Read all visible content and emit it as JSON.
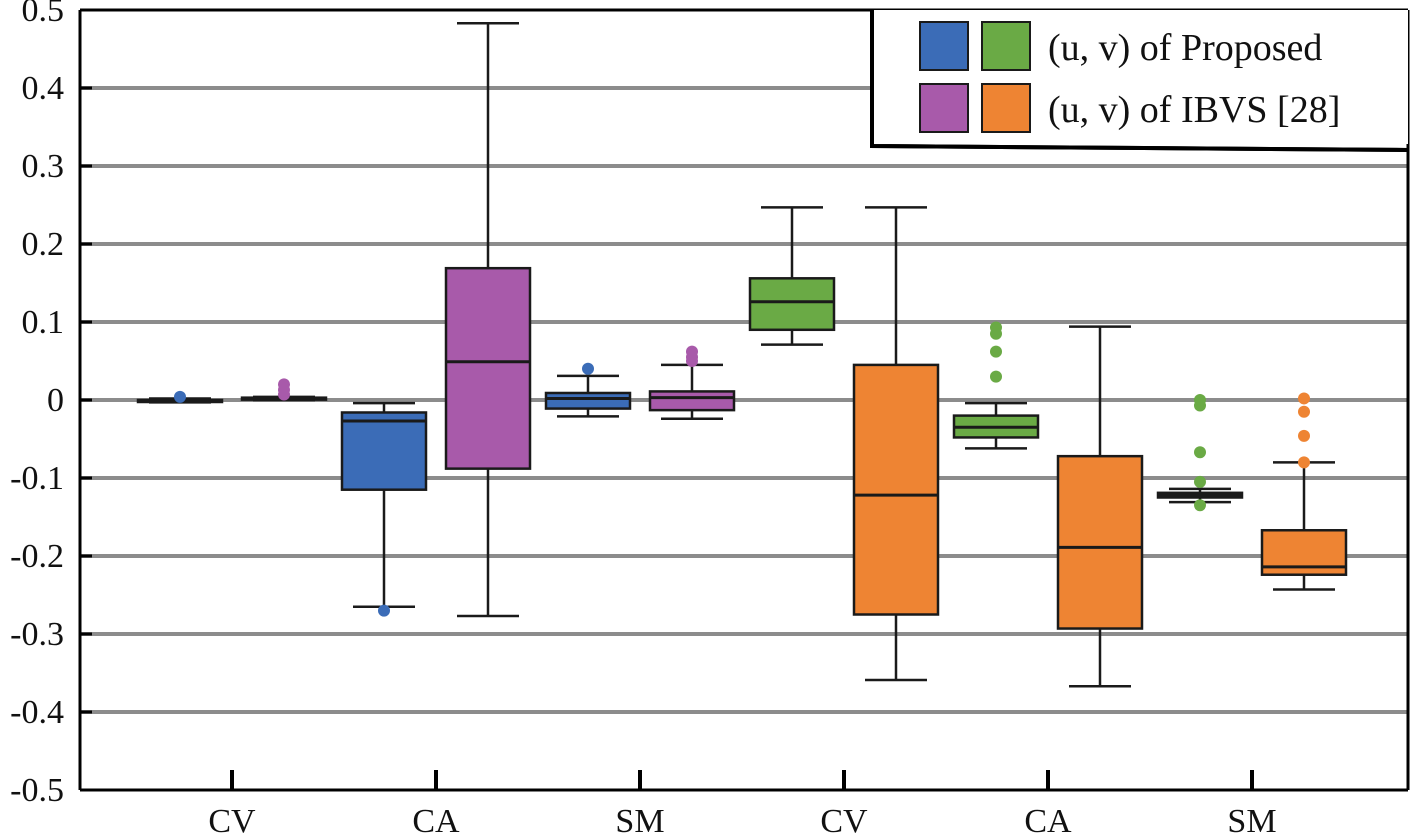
{
  "chart_data": {
    "type": "box",
    "ylim": [
      -0.5,
      0.5
    ],
    "yticks": [
      "-0.5",
      "-0.4",
      "-0.3",
      "-0.2",
      "-0.1",
      "0",
      "0.1",
      "0.2",
      "0.3",
      "0.4",
      "0.5"
    ],
    "ytick_values": [
      -0.5,
      -0.4,
      -0.3,
      -0.2,
      -0.1,
      0,
      0.1,
      0.2,
      0.3,
      0.4,
      0.5
    ],
    "categories": [
      "CV",
      "CA",
      "SM",
      "CV",
      "CA",
      "SM"
    ],
    "grid": true,
    "legend": {
      "position": "top-right",
      "entries": [
        {
          "label": "(u, v) of Proposed",
          "colors": [
            "#3b6cb7",
            "#6aaa45"
          ]
        },
        {
          "label": "(u, v) of IBVS [28]",
          "colors": [
            "#a85aaa",
            "#ee8433"
          ]
        }
      ]
    },
    "boxes": [
      {
        "category": 0,
        "offset": -0.5,
        "color": "#3b6cb7",
        "min": -0.003,
        "q1": -0.002,
        "median": -0.001,
        "q3": 0.0,
        "max": 0.002,
        "outliers": [
          0.004
        ]
      },
      {
        "category": 0,
        "offset": 0.5,
        "color": "#a85aaa",
        "min": 0.0,
        "q1": 0.001,
        "median": 0.002,
        "q3": 0.003,
        "max": 0.004,
        "outliers": [
          0.02,
          0.013,
          0.007
        ]
      },
      {
        "category": 1,
        "offset": -0.5,
        "color": "#3b6cb7",
        "min": -0.265,
        "q1": -0.115,
        "median": -0.027,
        "q3": -0.016,
        "max": -0.004,
        "outliers": [
          -0.27
        ]
      },
      {
        "category": 1,
        "offset": 0.5,
        "color": "#a85aaa",
        "min": -0.277,
        "q1": -0.088,
        "median": 0.049,
        "q3": 0.169,
        "max": 0.483,
        "outliers": []
      },
      {
        "category": 2,
        "offset": -0.5,
        "color": "#3b6cb7",
        "min": -0.021,
        "q1": -0.011,
        "median": 0.002,
        "q3": 0.009,
        "max": 0.031,
        "outliers": [
          0.04
        ]
      },
      {
        "category": 2,
        "offset": 0.5,
        "color": "#a85aaa",
        "min": -0.024,
        "q1": -0.013,
        "median": 0.003,
        "q3": 0.011,
        "max": 0.045,
        "outliers": [
          0.062,
          0.055,
          0.05
        ]
      },
      {
        "category": 3,
        "offset": -0.5,
        "color": "#6aaa45",
        "min": 0.071,
        "q1": 0.09,
        "median": 0.126,
        "q3": 0.156,
        "max": 0.247,
        "outliers": []
      },
      {
        "category": 3,
        "offset": 0.5,
        "color": "#ee8433",
        "min": -0.359,
        "q1": -0.275,
        "median": -0.122,
        "q3": 0.045,
        "max": 0.247,
        "outliers": []
      },
      {
        "category": 4,
        "offset": -0.5,
        "color": "#6aaa45",
        "min": -0.062,
        "q1": -0.048,
        "median": -0.035,
        "q3": -0.02,
        "max": -0.004,
        "outliers": [
          0.093,
          0.085,
          0.062,
          0.03
        ]
      },
      {
        "category": 4,
        "offset": 0.5,
        "color": "#ee8433",
        "min": -0.367,
        "q1": -0.293,
        "median": -0.189,
        "q3": -0.072,
        "max": 0.094,
        "outliers": []
      },
      {
        "category": 5,
        "offset": -0.5,
        "color": "#6aaa45",
        "min": -0.131,
        "q1": -0.125,
        "median": -0.122,
        "q3": -0.119,
        "max": -0.114,
        "outliers": [
          0.0,
          -0.007,
          -0.067,
          -0.105,
          -0.135
        ]
      },
      {
        "category": 5,
        "offset": 0.5,
        "color": "#ee8433",
        "min": -0.243,
        "q1": -0.224,
        "median": -0.214,
        "q3": -0.167,
        "max": -0.08,
        "outliers": [
          0.002,
          -0.015,
          -0.046,
          -0.08
        ]
      }
    ]
  }
}
